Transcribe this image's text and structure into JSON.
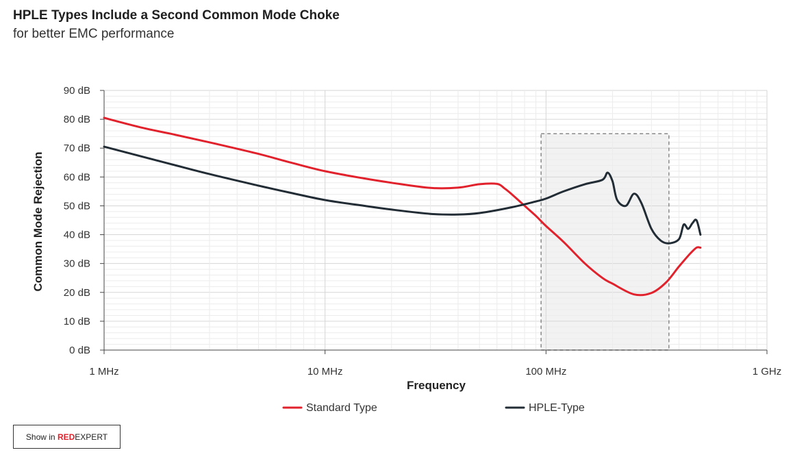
{
  "header": {
    "title": "HPLE Types Include a Second Common Mode Choke",
    "subtitle": "for better EMC performance"
  },
  "button": {
    "prefix": "Show in ",
    "brand_red": "RED",
    "brand_rest": "EXPERT"
  },
  "chart_data": {
    "type": "line",
    "x_scale": "log",
    "xlim": [
      1,
      1000
    ],
    "ylim": [
      0,
      90
    ],
    "xlabel": "Frequency",
    "ylabel": "Common Mode Rejection",
    "x_ticks": [
      {
        "value": 1,
        "label": "1 MHz"
      },
      {
        "value": 10,
        "label": "10 MHz"
      },
      {
        "value": 100,
        "label": "100 MHz"
      },
      {
        "value": 1000,
        "label": "1 GHz"
      }
    ],
    "y_ticks": [
      {
        "value": 0,
        "label": "0 dB"
      },
      {
        "value": 10,
        "label": "10 dB"
      },
      {
        "value": 20,
        "label": "20 dB"
      },
      {
        "value": 30,
        "label": "30 dB"
      },
      {
        "value": 40,
        "label": "40 dB"
      },
      {
        "value": 50,
        "label": "50 dB"
      },
      {
        "value": 60,
        "label": "60 dB"
      },
      {
        "value": 70,
        "label": "70 dB"
      },
      {
        "value": 80,
        "label": "80 dB"
      },
      {
        "value": 90,
        "label": "90 dB"
      }
    ],
    "grid": true,
    "legend_position": "bottom",
    "highlight_region": {
      "x": [
        95,
        360
      ],
      "y": [
        0,
        75
      ]
    },
    "series": [
      {
        "name": "Standard Type",
        "color": "#e1212b",
        "x": [
          1,
          1.5,
          2,
          3,
          5,
          7,
          10,
          15,
          20,
          30,
          40,
          50,
          60,
          65,
          70,
          80,
          90,
          100,
          120,
          150,
          180,
          200,
          250,
          300,
          350,
          400,
          450,
          480,
          500
        ],
        "y": [
          80.5,
          77,
          75,
          72,
          68,
          65,
          62,
          59.5,
          58,
          56.2,
          56.3,
          57.5,
          57.6,
          56,
          54,
          50,
          46.5,
          43,
          37.5,
          30,
          25,
          23,
          19.3,
          19.8,
          23.5,
          29,
          33.5,
          35.5,
          35.5
        ]
      },
      {
        "name": "HPLE-Type",
        "color": "#222c35",
        "x": [
          1,
          1.5,
          2,
          3,
          5,
          7,
          10,
          15,
          20,
          30,
          40,
          50,
          70,
          90,
          100,
          120,
          150,
          180,
          190,
          200,
          210,
          230,
          250,
          270,
          300,
          330,
          360,
          400,
          420,
          440,
          460,
          480,
          500
        ],
        "y": [
          70.5,
          67,
          64.5,
          61,
          57,
          54.5,
          52,
          50,
          48.7,
          47.2,
          47,
          47.5,
          49.5,
          51.5,
          52.5,
          55,
          57.5,
          59,
          61.5,
          58.5,
          52,
          50,
          54.2,
          51,
          42,
          38,
          37,
          38.5,
          43.5,
          42,
          44,
          45,
          40
        ]
      }
    ]
  }
}
